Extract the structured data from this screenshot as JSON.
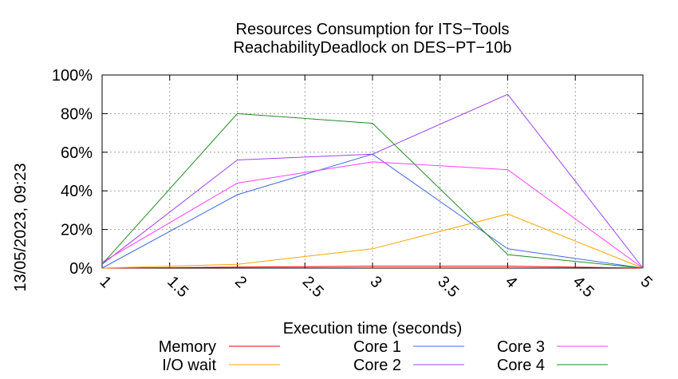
{
  "chart_data": {
    "type": "line",
    "title": "Resources Consumption for ITS−Tools",
    "subtitle": "ReachabilityDeadlock on DES−PT−10b",
    "xlabel": "Execution time (seconds)",
    "ylabel": "",
    "side_label": "13/05/2023, 09:23",
    "xlim": [
      1,
      5
    ],
    "ylim": [
      0,
      100
    ],
    "x_ticks": [
      "1",
      "1.5",
      "2",
      "2.5",
      "3",
      "3.5",
      "4",
      "4.5",
      "5"
    ],
    "y_ticks": [
      "0%",
      "20%",
      "40%",
      "60%",
      "80%",
      "100%"
    ],
    "grid": true,
    "legend_position": "bottom",
    "x": [
      1,
      2,
      3,
      4,
      5
    ],
    "series": [
      {
        "name": "Memory",
        "color": "#ff0000",
        "values": [
          0,
          0.5,
          1,
          1,
          0
        ]
      },
      {
        "name": "I/O wait",
        "color": "#ffa500",
        "values": [
          0,
          2,
          10,
          28,
          0
        ]
      },
      {
        "name": "Core 1",
        "color": "#4169e1",
        "values": [
          0,
          38,
          59,
          10,
          0
        ]
      },
      {
        "name": "Core 2",
        "color": "#a040f0",
        "values": [
          2,
          56,
          59,
          90,
          0
        ]
      },
      {
        "name": "Core 3",
        "color": "#ff40ff",
        "values": [
          3,
          44,
          55,
          51,
          0
        ]
      },
      {
        "name": "Core 4",
        "color": "#228b22",
        "values": [
          2,
          80,
          75,
          7,
          0
        ]
      }
    ]
  }
}
